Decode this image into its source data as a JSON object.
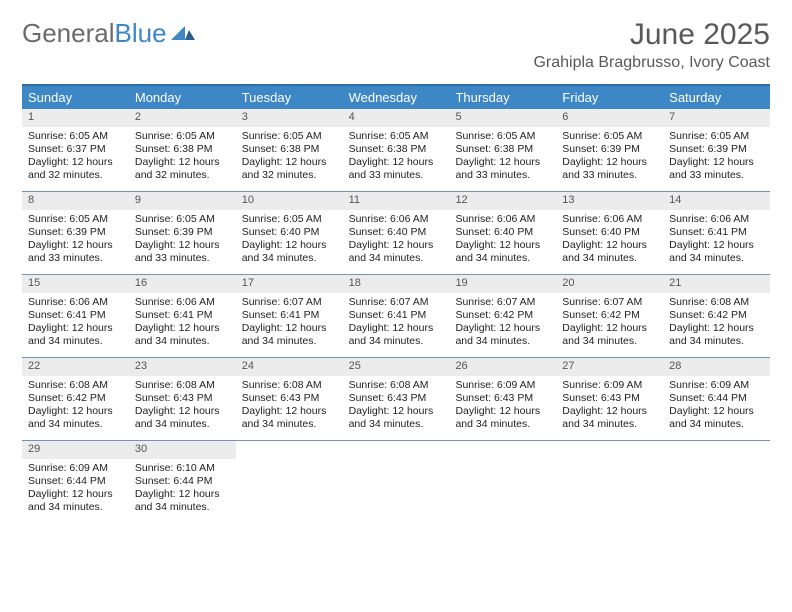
{
  "logo": {
    "text_gray": "General",
    "text_blue": "Blue"
  },
  "title": "June 2025",
  "location": "Grahipla Bragbrusso, Ivory Coast",
  "colors": {
    "accent": "#3d87c7",
    "header_border": "#2f6fa8",
    "row_border": "#6f94b9",
    "daynum_bg": "#ececec",
    "logo_gray": "#6b6b6b",
    "title_gray": "#595959"
  },
  "day_headers": [
    "Sunday",
    "Monday",
    "Tuesday",
    "Wednesday",
    "Thursday",
    "Friday",
    "Saturday"
  ],
  "weeks": [
    [
      {
        "n": "1",
        "sr": "6:05 AM",
        "ss": "6:37 PM",
        "dl": "12 hours and 32 minutes."
      },
      {
        "n": "2",
        "sr": "6:05 AM",
        "ss": "6:38 PM",
        "dl": "12 hours and 32 minutes."
      },
      {
        "n": "3",
        "sr": "6:05 AM",
        "ss": "6:38 PM",
        "dl": "12 hours and 32 minutes."
      },
      {
        "n": "4",
        "sr": "6:05 AM",
        "ss": "6:38 PM",
        "dl": "12 hours and 33 minutes."
      },
      {
        "n": "5",
        "sr": "6:05 AM",
        "ss": "6:38 PM",
        "dl": "12 hours and 33 minutes."
      },
      {
        "n": "6",
        "sr": "6:05 AM",
        "ss": "6:39 PM",
        "dl": "12 hours and 33 minutes."
      },
      {
        "n": "7",
        "sr": "6:05 AM",
        "ss": "6:39 PM",
        "dl": "12 hours and 33 minutes."
      }
    ],
    [
      {
        "n": "8",
        "sr": "6:05 AM",
        "ss": "6:39 PM",
        "dl": "12 hours and 33 minutes."
      },
      {
        "n": "9",
        "sr": "6:05 AM",
        "ss": "6:39 PM",
        "dl": "12 hours and 33 minutes."
      },
      {
        "n": "10",
        "sr": "6:05 AM",
        "ss": "6:40 PM",
        "dl": "12 hours and 34 minutes."
      },
      {
        "n": "11",
        "sr": "6:06 AM",
        "ss": "6:40 PM",
        "dl": "12 hours and 34 minutes."
      },
      {
        "n": "12",
        "sr": "6:06 AM",
        "ss": "6:40 PM",
        "dl": "12 hours and 34 minutes."
      },
      {
        "n": "13",
        "sr": "6:06 AM",
        "ss": "6:40 PM",
        "dl": "12 hours and 34 minutes."
      },
      {
        "n": "14",
        "sr": "6:06 AM",
        "ss": "6:41 PM",
        "dl": "12 hours and 34 minutes."
      }
    ],
    [
      {
        "n": "15",
        "sr": "6:06 AM",
        "ss": "6:41 PM",
        "dl": "12 hours and 34 minutes."
      },
      {
        "n": "16",
        "sr": "6:06 AM",
        "ss": "6:41 PM",
        "dl": "12 hours and 34 minutes."
      },
      {
        "n": "17",
        "sr": "6:07 AM",
        "ss": "6:41 PM",
        "dl": "12 hours and 34 minutes."
      },
      {
        "n": "18",
        "sr": "6:07 AM",
        "ss": "6:41 PM",
        "dl": "12 hours and 34 minutes."
      },
      {
        "n": "19",
        "sr": "6:07 AM",
        "ss": "6:42 PM",
        "dl": "12 hours and 34 minutes."
      },
      {
        "n": "20",
        "sr": "6:07 AM",
        "ss": "6:42 PM",
        "dl": "12 hours and 34 minutes."
      },
      {
        "n": "21",
        "sr": "6:08 AM",
        "ss": "6:42 PM",
        "dl": "12 hours and 34 minutes."
      }
    ],
    [
      {
        "n": "22",
        "sr": "6:08 AM",
        "ss": "6:42 PM",
        "dl": "12 hours and 34 minutes."
      },
      {
        "n": "23",
        "sr": "6:08 AM",
        "ss": "6:43 PM",
        "dl": "12 hours and 34 minutes."
      },
      {
        "n": "24",
        "sr": "6:08 AM",
        "ss": "6:43 PM",
        "dl": "12 hours and 34 minutes."
      },
      {
        "n": "25",
        "sr": "6:08 AM",
        "ss": "6:43 PM",
        "dl": "12 hours and 34 minutes."
      },
      {
        "n": "26",
        "sr": "6:09 AM",
        "ss": "6:43 PM",
        "dl": "12 hours and 34 minutes."
      },
      {
        "n": "27",
        "sr": "6:09 AM",
        "ss": "6:43 PM",
        "dl": "12 hours and 34 minutes."
      },
      {
        "n": "28",
        "sr": "6:09 AM",
        "ss": "6:44 PM",
        "dl": "12 hours and 34 minutes."
      }
    ],
    [
      {
        "n": "29",
        "sr": "6:09 AM",
        "ss": "6:44 PM",
        "dl": "12 hours and 34 minutes."
      },
      {
        "n": "30",
        "sr": "6:10 AM",
        "ss": "6:44 PM",
        "dl": "12 hours and 34 minutes."
      },
      null,
      null,
      null,
      null,
      null
    ]
  ],
  "labels": {
    "sunrise": "Sunrise:",
    "sunset": "Sunset:",
    "daylight": "Daylight:"
  }
}
